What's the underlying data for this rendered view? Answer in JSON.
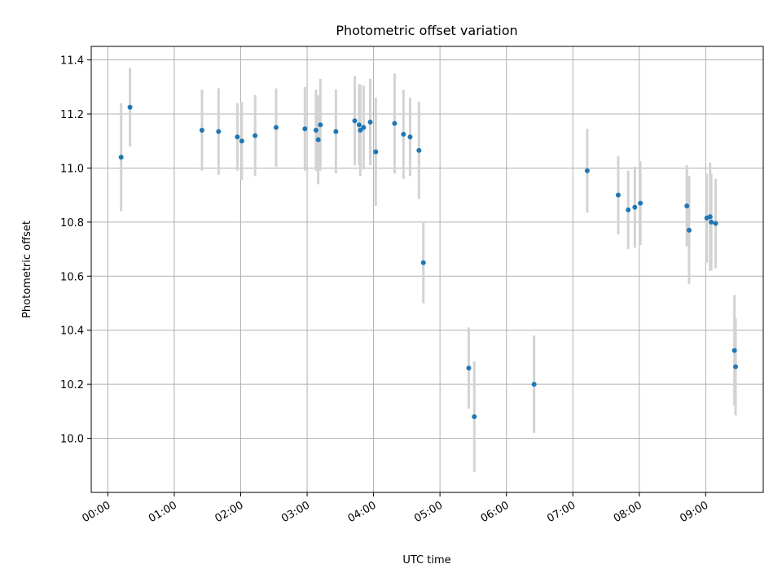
{
  "chart_data": {
    "type": "scatter",
    "title": "Photometric offset variation",
    "xlabel": "UTC time",
    "ylabel": "Photometric offset",
    "x_tick_labels": [
      "00:00",
      "01:00",
      "02:00",
      "03:00",
      "04:00",
      "05:00",
      "06:00",
      "07:00",
      "08:00",
      "09:00"
    ],
    "y_tick_labels": [
      "10.0",
      "10.2",
      "10.4",
      "10.6",
      "10.8",
      "11.0",
      "11.2",
      "11.4"
    ],
    "y_ticks": [
      10.0,
      10.2,
      10.4,
      10.6,
      10.8,
      11.0,
      11.2,
      11.4
    ],
    "xlim": [
      "-00:15",
      "09:52"
    ],
    "ylim": [
      9.8,
      11.45
    ],
    "grid": true,
    "marker_color": "#1f77b4",
    "errorbar_color": "#d3d3d3",
    "points": [
      {
        "t": "00:12",
        "y": 11.04,
        "err": 0.2
      },
      {
        "t": "00:20",
        "y": 11.225,
        "err": 0.145
      },
      {
        "t": "01:25",
        "y": 11.14,
        "err": 0.15
      },
      {
        "t": "01:40",
        "y": 11.135,
        "err": 0.16
      },
      {
        "t": "01:57",
        "y": 11.115,
        "err": 0.125
      },
      {
        "t": "02:01",
        "y": 11.1,
        "err": 0.145
      },
      {
        "t": "02:13",
        "y": 11.12,
        "err": 0.15
      },
      {
        "t": "02:32",
        "y": 11.15,
        "err": 0.145
      },
      {
        "t": "02:58",
        "y": 11.145,
        "err": 0.155
      },
      {
        "t": "03:08",
        "y": 11.14,
        "err": 0.15
      },
      {
        "t": "03:10",
        "y": 11.105,
        "err": 0.165
      },
      {
        "t": "03:12",
        "y": 11.16,
        "err": 0.17
      },
      {
        "t": "03:26",
        "y": 11.135,
        "err": 0.155
      },
      {
        "t": "03:43",
        "y": 11.175,
        "err": 0.165
      },
      {
        "t": "03:47",
        "y": 11.16,
        "err": 0.15
      },
      {
        "t": "03:48",
        "y": 11.14,
        "err": 0.17
      },
      {
        "t": "03:51",
        "y": 11.15,
        "err": 0.155
      },
      {
        "t": "03:57",
        "y": 11.17,
        "err": 0.16
      },
      {
        "t": "04:02",
        "y": 11.06,
        "err": 0.2
      },
      {
        "t": "04:19",
        "y": 11.165,
        "err": 0.185
      },
      {
        "t": "04:27",
        "y": 11.125,
        "err": 0.165
      },
      {
        "t": "04:33",
        "y": 11.115,
        "err": 0.145
      },
      {
        "t": "04:41",
        "y": 11.065,
        "err": 0.18
      },
      {
        "t": "04:45",
        "y": 10.65,
        "err": 0.15
      },
      {
        "t": "05:26",
        "y": 10.26,
        "err": 0.15
      },
      {
        "t": "05:31",
        "y": 10.08,
        "err": 0.205
      },
      {
        "t": "06:25",
        "y": 10.2,
        "err": 0.18
      },
      {
        "t": "07:13",
        "y": 10.99,
        "err": 0.155
      },
      {
        "t": "07:41",
        "y": 10.9,
        "err": 0.145
      },
      {
        "t": "07:50",
        "y": 10.845,
        "err": 0.145
      },
      {
        "t": "07:56",
        "y": 10.855,
        "err": 0.15
      },
      {
        "t": "08:01",
        "y": 10.87,
        "err": 0.155
      },
      {
        "t": "08:43",
        "y": 10.86,
        "err": 0.15
      },
      {
        "t": "08:45",
        "y": 10.77,
        "err": 0.2
      },
      {
        "t": "09:01",
        "y": 10.815,
        "err": 0.165
      },
      {
        "t": "09:04",
        "y": 10.82,
        "err": 0.2
      },
      {
        "t": "09:05",
        "y": 10.8,
        "err": 0.18
      },
      {
        "t": "09:09",
        "y": 10.795,
        "err": 0.165
      },
      {
        "t": "09:26",
        "y": 10.325,
        "err": 0.205
      },
      {
        "t": "09:27",
        "y": 10.265,
        "err": 0.18
      }
    ]
  }
}
